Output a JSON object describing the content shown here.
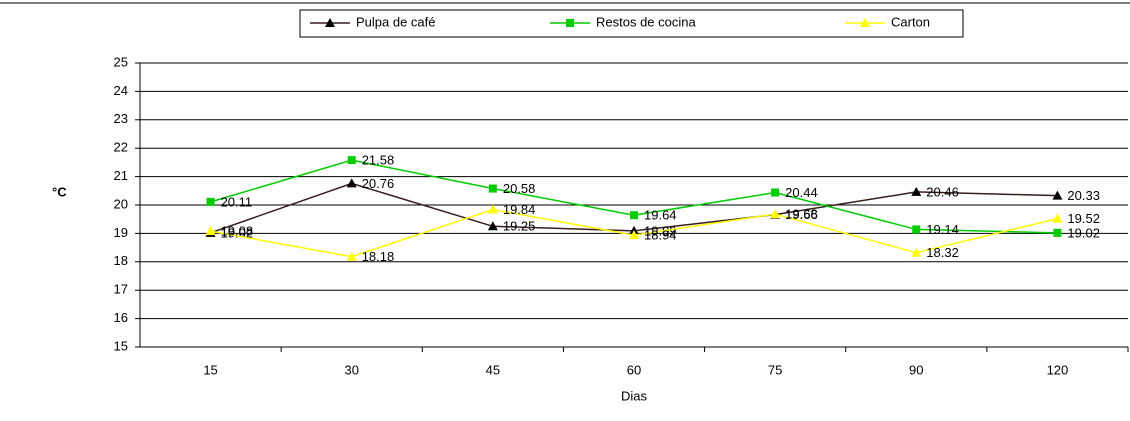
{
  "chart_data": {
    "type": "line",
    "x_label": "Dias",
    "y_label": "°C",
    "categories": [
      "15",
      "30",
      "45",
      "60",
      "75",
      "90",
      "120"
    ],
    "series": [
      {
        "name": "Pulpa de café",
        "color": "#3a1c1c",
        "marker_color": "#000000",
        "marker": "triangle",
        "values": [
          19.02,
          20.76,
          19.25,
          19.09,
          19.66,
          20.46,
          20.33
        ]
      },
      {
        "name": "Restos de cocina",
        "color": "#00cc00",
        "marker_color": "#00cc00",
        "marker": "square",
        "values": [
          20.11,
          21.58,
          20.58,
          19.64,
          20.44,
          19.14,
          19.02
        ]
      },
      {
        "name": "Carton",
        "color": "#ffff00",
        "marker_color": "#ffff00",
        "marker": "triangle",
        "values": [
          19.08,
          18.18,
          19.84,
          18.94,
          19.68,
          18.32,
          19.52
        ]
      }
    ],
    "ylim": [
      15,
      25
    ],
    "yticks": [
      15,
      16,
      17,
      18,
      19,
      20,
      21,
      22,
      23,
      24,
      25
    ],
    "grid": true,
    "legend": "top"
  }
}
